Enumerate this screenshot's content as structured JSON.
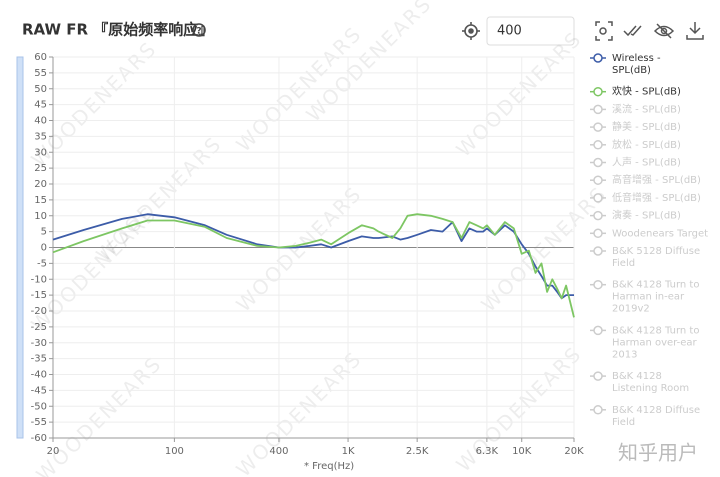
{
  "chart_data": {
    "type": "line",
    "title": "RAW FR 『原始频率响应』",
    "help": "?",
    "input_value": "400",
    "x_label": "* Freq(Hz)",
    "watermark": "WOODENEARS",
    "corner_watermark": "知乎用户",
    "log_x": true,
    "grid": true,
    "x": [
      20,
      30,
      50,
      70,
      100,
      150,
      200,
      300,
      400,
      500,
      600,
      700,
      800,
      1000,
      1200,
      1400,
      1500,
      1800,
      2000,
      2200,
      2500,
      3000,
      3500,
      4000,
      4500,
      5000,
      5500,
      6000,
      6300,
      7000,
      8000,
      9000,
      10000,
      11000,
      12000,
      13000,
      14000,
      15000,
      16000,
      17000,
      18000,
      20000
    ],
    "series": [
      {
        "name": "Wireless - SPL(dB)",
        "color": "#3c5ca8",
        "values": [
          2.5,
          5.5,
          9,
          10.5,
          9.5,
          7,
          4,
          1,
          0,
          0,
          0.5,
          1,
          0,
          2,
          3.5,
          3,
          3,
          3.5,
          2.5,
          3,
          4,
          5.5,
          5,
          8,
          2,
          6,
          5,
          5,
          6,
          4,
          7,
          5,
          1,
          -2,
          -6,
          -9,
          -12,
          -12,
          -14,
          -16,
          -15,
          -15
        ]
      },
      {
        "name": "欢快 - SPL(dB)",
        "color": "#7dc663",
        "values": [
          -1.5,
          2,
          6,
          8.5,
          8.5,
          6.5,
          3,
          0.5,
          0,
          0.5,
          1.5,
          2.5,
          1,
          4.5,
          7,
          6,
          5,
          3,
          6,
          10,
          10.5,
          10,
          9,
          8,
          3,
          8,
          7,
          6,
          7,
          4,
          8,
          6,
          -2,
          -1,
          -8,
          -5,
          -14,
          -10,
          -13,
          -16,
          -12,
          -22
        ]
      }
    ],
    "hidden_series": [
      "溪流 - SPL(dB)",
      "静美 - SPL(dB)",
      "放松 - SPL(dB)",
      "人声 - SPL(dB)",
      "高音增强 - SPL(dB)",
      "低音增强 - SPL(dB)",
      "演奏 - SPL(dB)",
      "Woodenears Target",
      "B&K 5128 Diffuse Field",
      "B&K 4128 Turn to Harman in-ear 2019v2",
      "B&K 4128 Turn to Harman over-ear 2013",
      "B&K 4128 Listening Room",
      "B&K 4128 Diffuse Field"
    ],
    "xlim": [
      20,
      20000
    ],
    "xticks": [
      20,
      100,
      400,
      {
        "value": 1000,
        "label": "1K"
      },
      {
        "value": 2500,
        "label": "2.5K"
      },
      {
        "value": 6300,
        "label": "6.3K"
      },
      {
        "value": 10000,
        "label": "10K"
      },
      {
        "value": 20000,
        "label": "20K"
      }
    ],
    "ylim": [
      -60,
      60
    ],
    "yticks": [
      -60,
      -55,
      -50,
      -45,
      -40,
      -35,
      -30,
      -25,
      -20,
      -15,
      -10,
      -5,
      0,
      5,
      10,
      15,
      20,
      25,
      30,
      35,
      40,
      45,
      50,
      55,
      60
    ]
  }
}
